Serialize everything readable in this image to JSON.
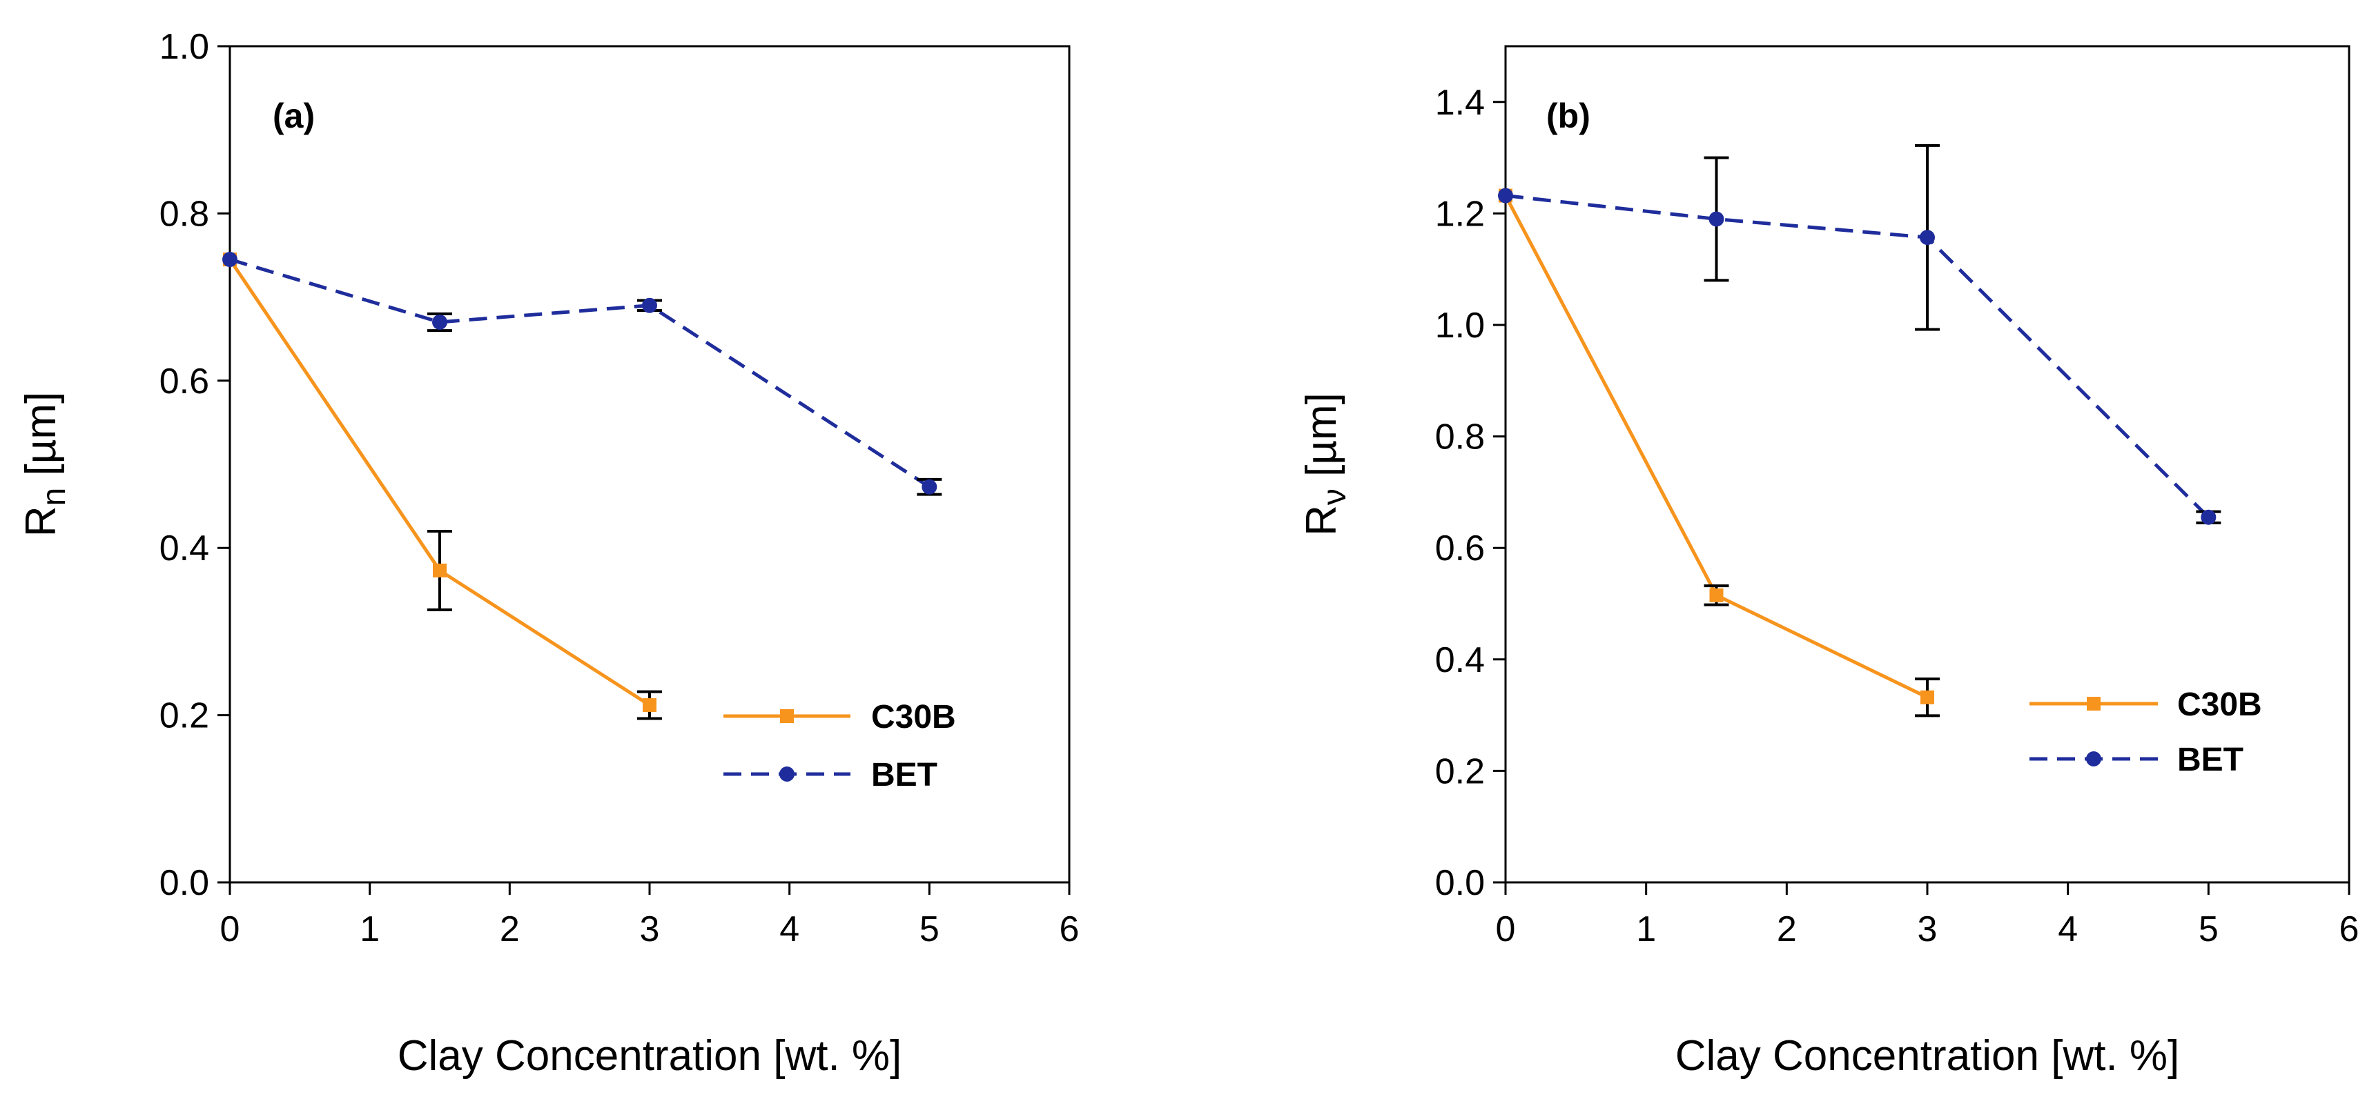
{
  "chart_data": [
    {
      "type": "line",
      "panel_label": "(a)",
      "xlabel": "Clay Concentration [wt. %]",
      "ylabel_main": "R",
      "ylabel_sub": "n",
      "ylabel_unit": " [µm]",
      "xlim": [
        0,
        6
      ],
      "ylim": [
        0.0,
        1.0
      ],
      "x_ticks": [
        0,
        1,
        2,
        3,
        4,
        5,
        6
      ],
      "x_tick_labels": [
        "0",
        "1",
        "2",
        "3",
        "4",
        "5",
        "6"
      ],
      "y_ticks": [
        0.0,
        0.2,
        0.4,
        0.6,
        0.8,
        1.0
      ],
      "y_tick_labels": [
        "0.0",
        "0.2",
        "0.4",
        "0.6",
        "0.8",
        "1.0"
      ],
      "grid": false,
      "legend_position": "lower-right",
      "series": [
        {
          "name": "C30B",
          "color": "#F7941D",
          "dash": "solid",
          "marker": "square",
          "x": [
            0,
            1.5,
            3
          ],
          "y": [
            0.745,
            0.373,
            0.212
          ],
          "err": [
            0,
            0.047,
            0.016
          ]
        },
        {
          "name": "BET",
          "color": "#1F2D9C",
          "dash": "dashed",
          "marker": "circle",
          "x": [
            0,
            1.5,
            3,
            5
          ],
          "y": [
            0.745,
            0.67,
            0.69,
            0.473
          ],
          "err": [
            0,
            0.01,
            0.006,
            0.009
          ]
        }
      ]
    },
    {
      "type": "line",
      "panel_label": "(b)",
      "xlabel": "Clay Concentration [wt. %]",
      "ylabel_main": "R",
      "ylabel_sub": "ν",
      "ylabel_unit": " [µm]",
      "xlim": [
        0,
        6
      ],
      "ylim": [
        0.0,
        1.5
      ],
      "x_ticks": [
        0,
        1,
        2,
        3,
        4,
        5,
        6
      ],
      "x_tick_labels": [
        "0",
        "1",
        "2",
        "3",
        "4",
        "5",
        "6"
      ],
      "y_ticks": [
        0.0,
        0.2,
        0.4,
        0.6,
        0.8,
        1.0,
        1.2,
        1.4
      ],
      "y_tick_labels": [
        "0.0",
        "0.2",
        "0.4",
        "0.6",
        "0.8",
        "1.0",
        "1.2",
        "1.4"
      ],
      "grid": false,
      "legend_position": "lower-right",
      "series": [
        {
          "name": "C30B",
          "color": "#F7941D",
          "dash": "solid",
          "marker": "square",
          "x": [
            0,
            1.5,
            3
          ],
          "y": [
            1.232,
            0.515,
            0.332
          ],
          "err": [
            0,
            0.017,
            0.033
          ]
        },
        {
          "name": "BET",
          "color": "#1F2D9C",
          "dash": "dashed",
          "marker": "circle",
          "x": [
            0,
            1.5,
            3,
            5
          ],
          "y": [
            1.232,
            1.19,
            1.157,
            0.655
          ],
          "err": [
            0,
            0.11,
            0.165,
            0.01
          ]
        }
      ]
    }
  ]
}
